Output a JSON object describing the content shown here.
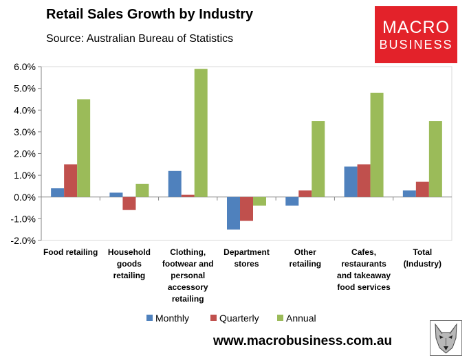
{
  "header": {
    "title": "Retail Sales Growth by Industry",
    "source": "Source: Australian Bureau of Statistics"
  },
  "logo": {
    "line1": "MACRO",
    "line2": "BUSINESS"
  },
  "footer": {
    "website": "www.macrobusiness.com.au"
  },
  "icons": {
    "wolf": "wolf-head-icon"
  },
  "chart_data": {
    "type": "bar",
    "title": "Retail Sales Growth by Industry",
    "ylim": [
      -0.02,
      0.06
    ],
    "yticks": [
      -0.02,
      -0.01,
      0.0,
      0.01,
      0.02,
      0.03,
      0.04,
      0.05,
      0.06
    ],
    "ytick_labels": [
      "-2.0%",
      "-1.0%",
      "0.0%",
      "1.0%",
      "2.0%",
      "3.0%",
      "4.0%",
      "5.0%",
      "6.0%"
    ],
    "grid": false,
    "legend_position": "bottom",
    "categories": [
      [
        "Food retailing"
      ],
      [
        "Household",
        "goods",
        "retailing"
      ],
      [
        "Clothing,",
        "footwear and",
        "personal",
        "accessory",
        "retailing"
      ],
      [
        "Department",
        "stores"
      ],
      [
        "Other",
        "retailing"
      ],
      [
        "Cafes,",
        "restaurants",
        "and takeaway",
        "food services"
      ],
      [
        "Total",
        "(Industry)"
      ]
    ],
    "series": [
      {
        "name": "Monthly",
        "color": "#4f81bd",
        "values": [
          0.004,
          0.002,
          0.012,
          -0.015,
          -0.004,
          0.014,
          0.003
        ]
      },
      {
        "name": "Quarterly",
        "color": "#c0504d",
        "values": [
          0.015,
          -0.006,
          0.001,
          -0.011,
          0.003,
          0.015,
          0.007
        ]
      },
      {
        "name": "Annual",
        "color": "#9bbb59",
        "values": [
          0.045,
          0.006,
          0.059,
          -0.004,
          0.035,
          0.048,
          0.035
        ]
      }
    ]
  }
}
